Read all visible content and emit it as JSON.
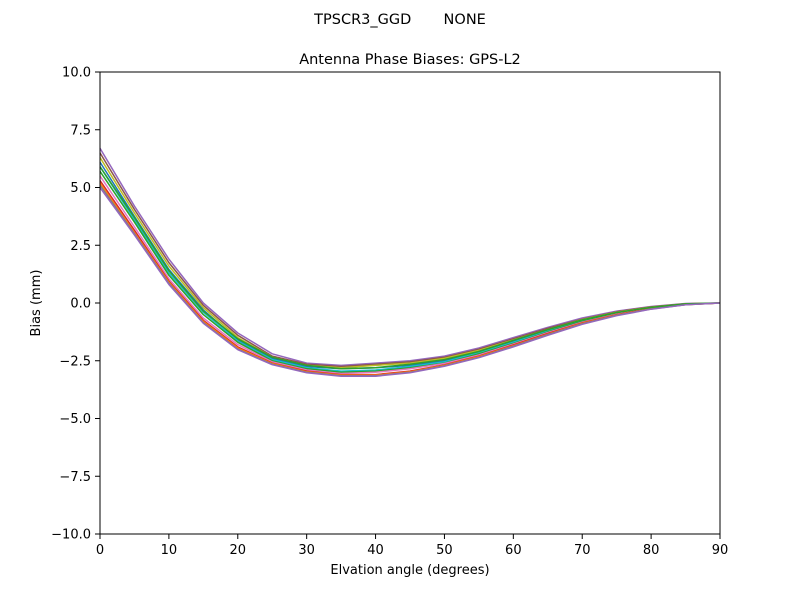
{
  "chart_data": {
    "type": "line",
    "suptitle": "TPSCR3_GGD       NONE",
    "title": "Antenna Phase Biases: GPS-L2",
    "xlabel": "Elvation angle (degrees)",
    "ylabel": "Bias (mm)",
    "xlim": [
      0,
      90
    ],
    "ylim": [
      -10,
      10
    ],
    "xticks": [
      0,
      10,
      20,
      30,
      40,
      50,
      60,
      70,
      80,
      90
    ],
    "xtick_labels": [
      "0",
      "10",
      "20",
      "30",
      "40",
      "50",
      "60",
      "70",
      "80",
      "90"
    ],
    "yticks": [
      10,
      7.5,
      5,
      2.5,
      0,
      -2.5,
      -5,
      -7.5,
      -10
    ],
    "ytick_labels": [
      "10.0",
      "7.5",
      "5.0",
      "2.5",
      "0.0",
      "−2.5",
      "−5.0",
      "−7.5",
      "−10.0"
    ],
    "grid": false,
    "legend": false,
    "x": [
      0,
      5,
      10,
      15,
      20,
      25,
      30,
      35,
      40,
      45,
      50,
      55,
      60,
      65,
      70,
      75,
      80,
      85,
      90
    ],
    "series": [
      {
        "color": "#9467bd",
        "values": [
          6.7,
          4.2,
          1.9,
          0.0,
          -1.3,
          -2.2,
          -2.6,
          -2.7,
          -2.6,
          -2.5,
          -2.3,
          -1.95,
          -1.5,
          -1.05,
          -0.65,
          -0.35,
          -0.15,
          -0.02,
          0.0
        ]
      },
      {
        "color": "#8c564b",
        "values": [
          6.5,
          4.05,
          1.75,
          -0.1,
          -1.4,
          -2.3,
          -2.65,
          -2.75,
          -2.65,
          -2.55,
          -2.35,
          -2.0,
          -1.55,
          -1.1,
          -0.7,
          -0.38,
          -0.17,
          -0.03,
          0.0
        ]
      },
      {
        "color": "#bcbd22",
        "values": [
          6.3,
          3.9,
          1.6,
          -0.2,
          -1.5,
          -2.35,
          -2.7,
          -2.8,
          -2.7,
          -2.6,
          -2.4,
          -2.05,
          -1.6,
          -1.15,
          -0.72,
          -0.4,
          -0.18,
          -0.04,
          0.0
        ]
      },
      {
        "color": "#1f77b4",
        "values": [
          6.1,
          3.75,
          1.45,
          -0.3,
          -1.6,
          -2.4,
          -2.75,
          -2.85,
          -2.8,
          -2.7,
          -2.5,
          -2.1,
          -1.65,
          -1.2,
          -0.75,
          -0.42,
          -0.2,
          -0.05,
          0.0
        ]
      },
      {
        "color": "#17becf",
        "values": [
          5.9,
          3.6,
          1.3,
          -0.4,
          -1.65,
          -2.45,
          -2.8,
          -2.95,
          -2.9,
          -2.75,
          -2.55,
          -2.15,
          -1.7,
          -1.22,
          -0.78,
          -0.44,
          -0.21,
          -0.05,
          0.0
        ]
      },
      {
        "color": "#2ca02c",
        "values": [
          5.7,
          3.5,
          1.2,
          -0.5,
          -1.7,
          -2.5,
          -2.85,
          -3.0,
          -2.95,
          -2.8,
          -2.6,
          -2.2,
          -1.75,
          -1.25,
          -0.8,
          -0.46,
          -0.22,
          -0.06,
          0.0
        ]
      },
      {
        "color": "#e377c2",
        "values": [
          5.5,
          3.3,
          1.05,
          -0.65,
          -1.8,
          -2.55,
          -2.9,
          -3.05,
          -3.0,
          -2.85,
          -2.62,
          -2.25,
          -1.78,
          -1.28,
          -0.83,
          -0.48,
          -0.23,
          -0.06,
          0.0
        ]
      },
      {
        "color": "#d62728",
        "values": [
          5.3,
          3.15,
          0.95,
          -0.75,
          -1.9,
          -2.6,
          -2.95,
          -3.1,
          -3.1,
          -2.95,
          -2.68,
          -2.3,
          -1.82,
          -1.32,
          -0.86,
          -0.5,
          -0.24,
          -0.07,
          0.0
        ]
      },
      {
        "color": "#ff7f0e",
        "values": [
          5.2,
          3.05,
          0.9,
          -0.8,
          -1.95,
          -2.62,
          -2.98,
          -3.12,
          -3.12,
          -2.98,
          -2.7,
          -2.32,
          -1.85,
          -1.35,
          -0.88,
          -0.52,
          -0.25,
          -0.07,
          0.0
        ]
      },
      {
        "color": "#7f7f7f",
        "values": [
          5.1,
          3.0,
          0.85,
          -0.85,
          -2.0,
          -2.65,
          -3.0,
          -3.15,
          -3.15,
          -3.0,
          -2.72,
          -2.35,
          -1.87,
          -1.37,
          -0.9,
          -0.53,
          -0.26,
          -0.08,
          0.0
        ]
      },
      {
        "color": "#2ca02c",
        "values": [
          5.9,
          3.7,
          1.4,
          -0.35,
          -1.55,
          -2.35,
          -2.7,
          -2.85,
          -2.8,
          -2.65,
          -2.45,
          -2.1,
          -1.62,
          -1.15,
          -0.73,
          -0.41,
          -0.19,
          -0.04,
          0.0
        ]
      },
      {
        "color": "#9467bd",
        "values": [
          5.0,
          2.95,
          0.8,
          -0.88,
          -2.02,
          -2.67,
          -3.02,
          -3.17,
          -3.17,
          -3.02,
          -2.74,
          -2.37,
          -1.9,
          -1.4,
          -0.92,
          -0.55,
          -0.27,
          -0.08,
          0.0
        ]
      }
    ]
  }
}
